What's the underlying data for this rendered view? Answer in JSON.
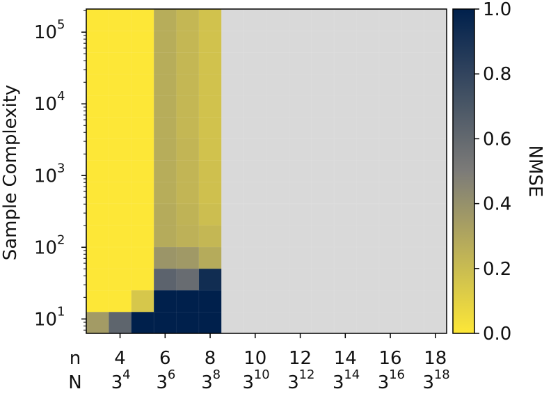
{
  "chart_data": {
    "type": "heatmap",
    "title": "",
    "xlabel": "",
    "ylabel": "Sample Complexity",
    "colorbar_label": "NMSE",
    "colorbar_ticks": [
      "0.0",
      "0.2",
      "0.4",
      "0.6",
      "0.8",
      "1.0"
    ],
    "colorbar_range": [
      0,
      1
    ],
    "colormap": "cividis_r",
    "colors": {
      "low": "#fde737",
      "mid": "#7c7b78",
      "high": "#00204c",
      "missing": "#d9d9d9"
    },
    "x_row1_label": "n",
    "x_row2_label": "N",
    "x_columns": [
      3,
      4,
      5,
      6,
      7,
      8,
      9,
      10,
      11,
      12,
      13,
      14,
      15,
      16,
      17,
      18
    ],
    "x_tick_labels": [
      {
        "n": "4",
        "N_base": "3",
        "N_exp": "4"
      },
      {
        "n": "6",
        "N_base": "3",
        "N_exp": "6"
      },
      {
        "n": "8",
        "N_base": "3",
        "N_exp": "8"
      },
      {
        "n": "10",
        "N_base": "3",
        "N_exp": "10"
      },
      {
        "n": "12",
        "N_base": "3",
        "N_exp": "12"
      },
      {
        "n": "14",
        "N_base": "3",
        "N_exp": "14"
      },
      {
        "n": "16",
        "N_base": "3",
        "N_exp": "16"
      },
      {
        "n": "18",
        "N_base": "3",
        "N_exp": "18"
      }
    ],
    "x_tick_values": [
      4,
      6,
      8,
      10,
      12,
      14,
      16,
      18
    ],
    "y_scale": "log",
    "y_range": [
      6.3,
      210000
    ],
    "y_rows_sample_complexity": [
      8,
      15,
      31,
      62,
      125,
      250,
      500,
      1000,
      2000,
      4000,
      8000,
      16000,
      32000,
      64000,
      128000
    ],
    "y_tick_labels": [
      {
        "base": "10",
        "exp": "1",
        "value": 10
      },
      {
        "base": "10",
        "exp": "2",
        "value": 100
      },
      {
        "base": "10",
        "exp": "3",
        "value": 1000
      },
      {
        "base": "10",
        "exp": "4",
        "value": 10000
      },
      {
        "base": "10",
        "exp": "5",
        "value": 100000
      }
    ],
    "values": [
      [
        0.35,
        0.62,
        1.0,
        1.0,
        1.0,
        1.0,
        null,
        null,
        null,
        null,
        null,
        null,
        null,
        null,
        null,
        null
      ],
      [
        0.0,
        0.0,
        0.15,
        1.0,
        1.0,
        1.0,
        null,
        null,
        null,
        null,
        null,
        null,
        null,
        null,
        null,
        null
      ],
      [
        0.0,
        0.0,
        0.0,
        0.63,
        0.58,
        0.93,
        null,
        null,
        null,
        null,
        null,
        null,
        null,
        null,
        null,
        null
      ],
      [
        0.0,
        0.0,
        0.0,
        0.38,
        0.36,
        0.28,
        null,
        null,
        null,
        null,
        null,
        null,
        null,
        null,
        null,
        null
      ],
      [
        0.0,
        0.0,
        0.0,
        0.28,
        0.25,
        0.22,
        null,
        null,
        null,
        null,
        null,
        null,
        null,
        null,
        null,
        null
      ],
      [
        0.0,
        0.0,
        0.0,
        0.28,
        0.24,
        0.19,
        null,
        null,
        null,
        null,
        null,
        null,
        null,
        null,
        null,
        null
      ],
      [
        0.0,
        0.0,
        0.0,
        0.27,
        0.23,
        0.18,
        null,
        null,
        null,
        null,
        null,
        null,
        null,
        null,
        null,
        null
      ],
      [
        0.0,
        0.0,
        0.0,
        0.27,
        0.23,
        0.18,
        null,
        null,
        null,
        null,
        null,
        null,
        null,
        null,
        null,
        null
      ],
      [
        0.0,
        0.0,
        0.0,
        0.27,
        0.23,
        0.17,
        null,
        null,
        null,
        null,
        null,
        null,
        null,
        null,
        null,
        null
      ],
      [
        0.0,
        0.0,
        0.0,
        0.27,
        0.22,
        0.17,
        null,
        null,
        null,
        null,
        null,
        null,
        null,
        null,
        null,
        null
      ],
      [
        0.0,
        0.0,
        0.0,
        0.27,
        0.22,
        0.17,
        null,
        null,
        null,
        null,
        null,
        null,
        null,
        null,
        null,
        null
      ],
      [
        0.0,
        0.0,
        0.0,
        0.27,
        0.22,
        0.17,
        null,
        null,
        null,
        null,
        null,
        null,
        null,
        null,
        null,
        null
      ],
      [
        0.0,
        0.0,
        0.0,
        0.27,
        0.22,
        0.17,
        null,
        null,
        null,
        null,
        null,
        null,
        null,
        null,
        null,
        null
      ],
      [
        0.0,
        0.0,
        0.0,
        0.27,
        0.22,
        0.17,
        null,
        null,
        null,
        null,
        null,
        null,
        null,
        null,
        null,
        null
      ],
      [
        0.0,
        0.0,
        0.0,
        0.27,
        0.22,
        0.17,
        null,
        null,
        null,
        null,
        null,
        null,
        null,
        null,
        null,
        null
      ]
    ]
  }
}
